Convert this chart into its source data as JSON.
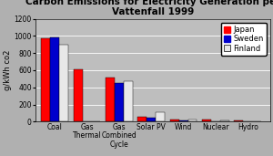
{
  "title": "Carbon Emissions for Electricity Generation per\nVattenfall 1999",
  "ylabel": "g/kWh co2",
  "categories": [
    "Coal",
    "Gas\nThermal",
    "Gas\nCombined\nCycle",
    "Solar PV",
    "Wind",
    "Nuclear",
    "Hydro"
  ],
  "japan": [
    975,
    608,
    519,
    57,
    29,
    22,
    15
  ],
  "sweden": [
    980,
    0,
    450,
    50,
    16,
    5,
    3
  ],
  "finland": [
    894,
    0,
    472,
    110,
    22,
    10,
    6
  ],
  "colors": {
    "japan": "#ff0000",
    "sweden": "#0000cc",
    "finland": "#e8e8e8"
  },
  "ylim": [
    0,
    1200
  ],
  "yticks": [
    0,
    200,
    400,
    600,
    800,
    1000,
    1200
  ],
  "background_color": "#b0b0b0",
  "plot_bg_color": "#bebebe",
  "title_fontsize": 7.5,
  "axis_fontsize": 6,
  "tick_fontsize": 5.5,
  "legend_fontsize": 6,
  "bar_width": 0.28
}
